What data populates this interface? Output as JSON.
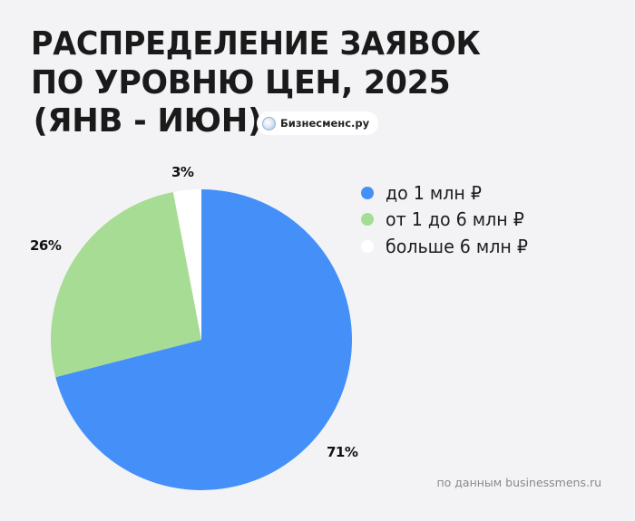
{
  "title": {
    "line1": "Распределение заявок",
    "line2": "по уровню цен, 2025",
    "line3": "(янв - июн)"
  },
  "badge": {
    "icon": "circle-logo-icon",
    "label": "Бизнесменс.ру"
  },
  "legend": [
    {
      "label": "до 1 млн ₽",
      "color": "#4490f8"
    },
    {
      "label": "от 1 до 6 млн ₽",
      "color": "#a6dc94"
    },
    {
      "label": "больше 6 млн ₽",
      "color": "#ffffff"
    }
  ],
  "labels": {
    "slice1": "71%",
    "slice2": "26%",
    "slice3": "3%"
  },
  "source": "по данным businessmens.ru",
  "chart_data": {
    "type": "pie",
    "title": "Распределение заявок по уровню цен, 2025 (янв - июн)",
    "categories": [
      "до 1 млн ₽",
      "от 1 до 6 млн ₽",
      "больше 6 млн ₽"
    ],
    "values": [
      71,
      26,
      3
    ],
    "unit": "%",
    "colors": [
      "#4490f8",
      "#a6dc94",
      "#ffffff"
    ],
    "start_angle": "12 o'clock, clockwise",
    "legend_position": "right",
    "source": "по данным businessmens.ru"
  }
}
